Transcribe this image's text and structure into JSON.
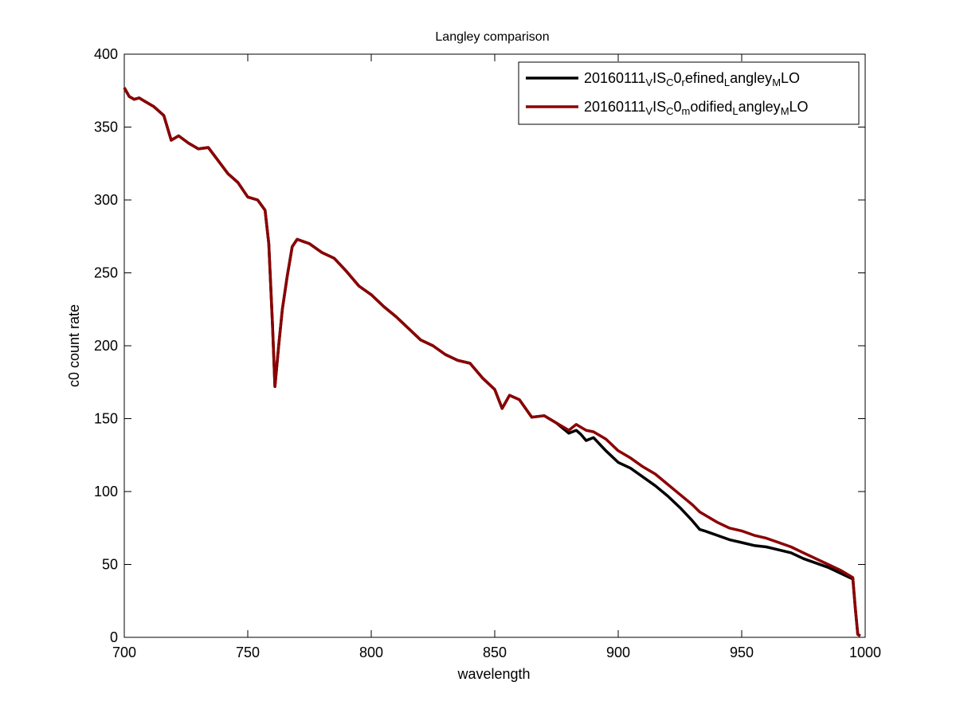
{
  "chart_data": {
    "type": "line",
    "title": "Langley comparison",
    "xlabel": "wavelength",
    "ylabel": "c0 count rate",
    "xlim": [
      700,
      1000
    ],
    "ylim": [
      0,
      400
    ],
    "xticks": [
      700,
      750,
      800,
      850,
      900,
      950,
      1000
    ],
    "yticks": [
      0,
      50,
      100,
      150,
      200,
      250,
      300,
      350,
      400
    ],
    "grid": false,
    "legend_position": "top-right",
    "series": [
      {
        "name": "20160111_VIS_C0_refined_Langley_MLO",
        "legend_parts": [
          [
            "20160111",
            ""
          ],
          [
            "V",
            "sub"
          ],
          [
            "IS",
            ""
          ],
          [
            "C",
            "sub"
          ],
          [
            "0",
            ""
          ],
          [
            "r",
            "sub"
          ],
          [
            "efined",
            ""
          ],
          [
            "L",
            "sub"
          ],
          [
            "angley",
            ""
          ],
          [
            "M",
            "sub"
          ],
          [
            "LO",
            ""
          ]
        ],
        "color": "#000000",
        "x": [
          700,
          702,
          704,
          706,
          708,
          712,
          716,
          719,
          722,
          726,
          730,
          734,
          738,
          742,
          746,
          750,
          754,
          757,
          758.5,
          760,
          761,
          762.5,
          764,
          766,
          768,
          770,
          775,
          780,
          785,
          790,
          795,
          800,
          805,
          810,
          815,
          820,
          825,
          830,
          835,
          840,
          845,
          850,
          853,
          856,
          860,
          865,
          870,
          875,
          880,
          883,
          885,
          887,
          890,
          895,
          900,
          905,
          910,
          915,
          920,
          925,
          930,
          933,
          935,
          940,
          945,
          950,
          955,
          960,
          965,
          970,
          975,
          980,
          985,
          990,
          995,
          996,
          997,
          998
        ],
        "y": [
          377,
          371,
          369,
          370,
          368,
          364,
          358,
          341,
          344,
          339,
          335,
          336,
          327,
          318,
          312,
          302,
          300,
          293,
          270,
          215,
          172,
          200,
          225,
          248,
          268,
          273,
          270,
          264,
          260,
          251,
          241,
          235,
          227,
          220,
          212,
          204,
          200,
          194,
          190,
          188,
          178,
          170,
          157,
          166,
          163,
          151,
          152,
          147,
          140,
          142,
          139,
          135,
          137,
          128,
          120,
          116,
          110,
          104,
          97,
          89,
          80,
          74,
          73,
          70,
          67,
          65,
          63,
          62,
          60,
          58,
          54,
          51,
          48,
          44,
          40,
          20,
          2,
          1
        ]
      },
      {
        "name": "20160111_VIS_C0_modified_Langley_MLO",
        "legend_parts": [
          [
            "20160111",
            ""
          ],
          [
            "V",
            "sub"
          ],
          [
            "IS",
            ""
          ],
          [
            "C",
            "sub"
          ],
          [
            "0",
            ""
          ],
          [
            "m",
            "sub"
          ],
          [
            "odified",
            ""
          ],
          [
            "L",
            "sub"
          ],
          [
            "angley",
            ""
          ],
          [
            "M",
            "sub"
          ],
          [
            "LO",
            ""
          ]
        ],
        "color": "#8b0000",
        "x": [
          700,
          702,
          704,
          706,
          708,
          712,
          716,
          719,
          722,
          726,
          730,
          734,
          738,
          742,
          746,
          750,
          754,
          757,
          758.5,
          760,
          761,
          762.5,
          764,
          766,
          768,
          770,
          775,
          780,
          785,
          790,
          795,
          800,
          805,
          810,
          815,
          820,
          825,
          830,
          835,
          840,
          845,
          850,
          853,
          856,
          860,
          865,
          870,
          875,
          880,
          883,
          885,
          887,
          890,
          895,
          900,
          905,
          910,
          915,
          920,
          925,
          930,
          933,
          935,
          940,
          945,
          950,
          955,
          960,
          965,
          970,
          975,
          980,
          985,
          990,
          995,
          996,
          997,
          998
        ],
        "y": [
          377,
          371,
          369,
          370,
          368,
          364,
          358,
          341,
          344,
          339,
          335,
          336,
          327,
          318,
          312,
          302,
          300,
          293,
          270,
          215,
          172,
          200,
          225,
          248,
          268,
          273,
          270,
          264,
          260,
          251,
          241,
          235,
          227,
          220,
          212,
          204,
          200,
          194,
          190,
          188,
          178,
          170,
          157,
          166,
          163,
          151,
          152,
          147,
          142,
          146,
          144,
          142,
          141,
          136,
          128,
          123,
          117,
          112,
          105,
          98,
          91,
          86,
          84,
          79,
          75,
          73,
          70,
          68,
          65,
          62,
          58,
          54,
          50,
          46,
          41,
          20,
          2,
          1
        ]
      }
    ]
  }
}
